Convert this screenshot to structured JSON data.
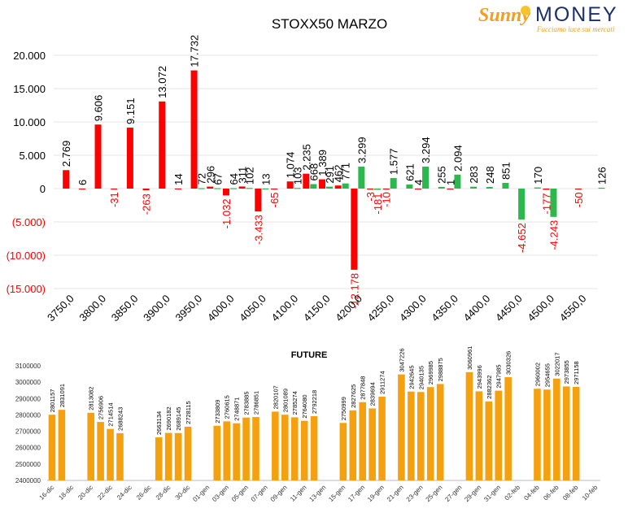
{
  "logo": {
    "brand_part1": "Sunny",
    "brand_part2": "MONEY",
    "tagline": "Facciamo luce sui mercati"
  },
  "chart_data": [
    {
      "type": "bar",
      "title": "STOXX50 MARZO",
      "ylim": [
        -15000,
        20000
      ],
      "yticks": [
        {
          "v": 20000,
          "label": "20.000"
        },
        {
          "v": 15000,
          "label": "15.000"
        },
        {
          "v": 10000,
          "label": "10.000"
        },
        {
          "v": 5000,
          "label": "5.000"
        },
        {
          "v": 0,
          "label": "0"
        },
        {
          "v": -5000,
          "label": "(5.000)"
        },
        {
          "v": -10000,
          "label": "(10.000)"
        },
        {
          "v": -15000,
          "label": "(15.000)"
        }
      ],
      "xticks": [
        "3750,0",
        "3800,0",
        "3850,0",
        "3900,0",
        "3950,0",
        "4000,0",
        "4050,0",
        "4100,0",
        "4150,0",
        "4200,0",
        "4250,0",
        "4300,0",
        "4350,0",
        "4400,0",
        "4450,0",
        "4500,0",
        "4550,0"
      ],
      "x_range": [
        3725,
        4575
      ],
      "grid": true,
      "colors": {
        "put": "#ff0000",
        "call": "#2db84d",
        "negative_label": "#ff0000",
        "positive_label": "#000000"
      },
      "series": [
        {
          "name": "",
          "color": "#ff0000",
          "points": [
            {
              "x": 3750,
              "y": 2769,
              "label": "2.769"
            },
            {
              "x": 3775,
              "y": 6,
              "label": "6"
            },
            {
              "x": 3800,
              "y": 9606,
              "label": "9.606"
            },
            {
              "x": 3825,
              "y": -31,
              "label": "-31"
            },
            {
              "x": 3850,
              "y": 9151,
              "label": "9.151"
            },
            {
              "x": 3875,
              "y": -263,
              "label": "-263"
            },
            {
              "x": 3900,
              "y": 13072,
              "label": "13.072"
            },
            {
              "x": 3925,
              "y": 14,
              "label": "14"
            },
            {
              "x": 3950,
              "y": 17732,
              "label": "17.732"
            },
            {
              "x": 3975,
              "y": 296,
              "label": "296"
            },
            {
              "x": 4000,
              "y": -1032,
              "label": "-1.032"
            },
            {
              "x": 4025,
              "y": 311,
              "label": "311"
            },
            {
              "x": 4050,
              "y": -3433,
              "label": "-3.433"
            },
            {
              "x": 4075,
              "y": -65,
              "label": "-65"
            },
            {
              "x": 4100,
              "y": 1074,
              "label": "1.074"
            },
            {
              "x": 4125,
              "y": 2235,
              "label": "2.235"
            },
            {
              "x": 4150,
              "y": 1389,
              "label": "1.389"
            },
            {
              "x": 4175,
              "y": 462,
              "label": "462"
            },
            {
              "x": 4200,
              "y": -12178,
              "label": "-12.178"
            },
            {
              "x": 4225,
              "y": -3,
              "label": "-3"
            },
            {
              "x": 4250,
              "y": -10,
              "label": "-10"
            },
            {
              "x": 4300,
              "y": 4,
              "label": "4"
            },
            {
              "x": 4350,
              "y": 1,
              "label": "1"
            },
            {
              "x": 4500,
              "y": -177,
              "label": "-177"
            },
            {
              "x": 4550,
              "y": -50,
              "label": "-50"
            }
          ]
        },
        {
          "name": "",
          "color": "#2db84d",
          "points": [
            {
              "x": 3950,
              "y": 72,
              "label": "72"
            },
            {
              "x": 3975,
              "y": 67,
              "label": "67"
            },
            {
              "x": 4000,
              "y": 64,
              "label": "64"
            },
            {
              "x": 4025,
              "y": 102,
              "label": "102"
            },
            {
              "x": 4050,
              "y": 13,
              "label": "13"
            },
            {
              "x": 4100,
              "y": 103,
              "label": "103"
            },
            {
              "x": 4125,
              "y": 668,
              "label": "668"
            },
            {
              "x": 4150,
              "y": 291,
              "label": "291"
            },
            {
              "x": 4175,
              "y": 771,
              "label": "771"
            },
            {
              "x": 4200,
              "y": 3299,
              "label": "3.299"
            },
            {
              "x": 4225,
              "y": -181,
              "label": "-181"
            },
            {
              "x": 4250,
              "y": 1577,
              "label": "1.577"
            },
            {
              "x": 4275,
              "y": 621,
              "label": "621"
            },
            {
              "x": 4300,
              "y": 3294,
              "label": "3.294"
            },
            {
              "x": 4325,
              "y": 255,
              "label": "255"
            },
            {
              "x": 4350,
              "y": 2094,
              "label": "2.094"
            },
            {
              "x": 4375,
              "y": 283,
              "label": "283"
            },
            {
              "x": 4400,
              "y": 248,
              "label": "248"
            },
            {
              "x": 4425,
              "y": 851,
              "label": "851"
            },
            {
              "x": 4450,
              "y": -4652,
              "label": "-4.652"
            },
            {
              "x": 4475,
              "y": 170,
              "label": "170"
            },
            {
              "x": 4500,
              "y": -4243,
              "label": "-4.243"
            },
            {
              "x": 4575,
              "y": 126,
              "label": "126"
            }
          ]
        }
      ]
    },
    {
      "type": "bar",
      "title": "FUTURE",
      "ylim": [
        2400000,
        3100000
      ],
      "yticks": [
        "2400000",
        "2500000",
        "2600000",
        "2700000",
        "2800000",
        "2900000",
        "3000000",
        "3100000"
      ],
      "grid": false,
      "color": "#f5a10f",
      "xtick_labels": [
        "16-dic",
        "18-dic",
        "20-dic",
        "22-dic",
        "24-dic",
        "26-dic",
        "28-dic",
        "30-dic",
        "01-gen",
        "03-gen",
        "05-gen",
        "07-gen",
        "09-gen",
        "11-gen",
        "13-gen",
        "15-gen",
        "17-gen",
        "19-gen",
        "21-gen",
        "23-gen",
        "25-gen",
        "27-gen",
        "29-gen",
        "31-gen",
        "02-feb",
        "04-feb",
        "06-feb",
        "08-feb",
        "10-feb"
      ],
      "categories_count": 57,
      "values": [
        2801157,
        2831091,
        null,
        null,
        2813082,
        2756906,
        2714514,
        2688243,
        null,
        null,
        null,
        2663134,
        2690182,
        2689145,
        2728115,
        null,
        null,
        2733809,
        2760615,
        2748871,
        2783885,
        2786851,
        null,
        2820107,
        2801089,
        2785274,
        2764080,
        2792218,
        null,
        null,
        2750999,
        2827625,
        2877848,
        2839694,
        2911274,
        null,
        3047226,
        2942645,
        2940135,
        2969985,
        2988875,
        null,
        null,
        3060961,
        2943996,
        2882362,
        2947985,
        3030326,
        null,
        null,
        2960002,
        2954655,
        3022017,
        2973855,
        2971158,
        null,
        null
      ]
    }
  ]
}
